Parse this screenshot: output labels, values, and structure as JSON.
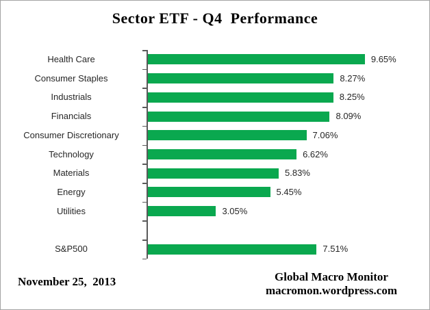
{
  "title": "Sector ETF - Q4  Performance",
  "chart_data": {
    "type": "bar",
    "orientation": "horizontal",
    "title": "Sector ETF - Q4  Performance",
    "categories": [
      "Health Care",
      "Consumer Staples",
      "Industrials",
      "Financials",
      "Consumer Discretionary",
      "Technology",
      "Materials",
      "Energy",
      "Utilities",
      "",
      "S&P500"
    ],
    "values": [
      9.65,
      8.27,
      8.25,
      8.09,
      7.06,
      6.62,
      5.83,
      5.45,
      3.05,
      null,
      7.51
    ],
    "value_labels": [
      "9.65%",
      "8.27%",
      "8.25%",
      "8.09%",
      "7.06%",
      "6.62%",
      "5.83%",
      "5.45%",
      "3.05%",
      "",
      "7.51%"
    ],
    "xlabel": "",
    "ylabel": "",
    "xlim": [
      0,
      12
    ],
    "grid": false,
    "legend": false,
    "bar_color": "#0AA84F",
    "axis_color": "#595959",
    "text_color": "#262626"
  },
  "footer": {
    "date": "November 25,  2013",
    "credit_line1": "Global Macro Monitor",
    "credit_line2": "macromon.wordpress.com"
  }
}
